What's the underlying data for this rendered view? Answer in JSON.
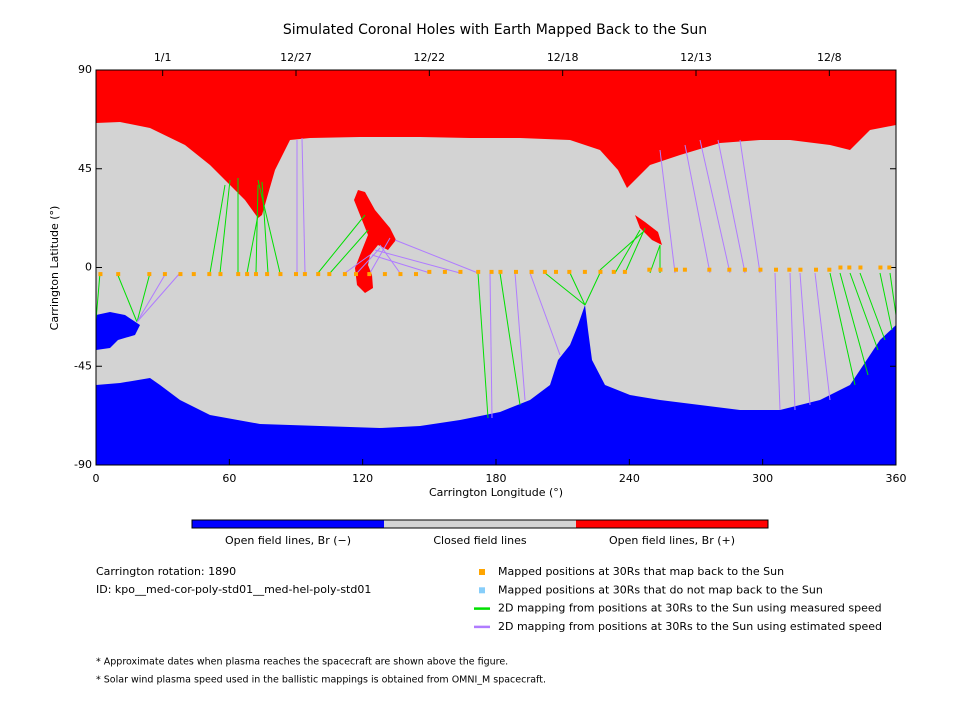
{
  "chart_data": {
    "type": "scatter",
    "title": "Simulated Coronal Holes with Earth Mapped Back to the Sun",
    "x_label": "Carrington Longitude (°)",
    "y_label": "Carrington Latitude (°)",
    "xlim": [
      0,
      360
    ],
    "ylim": [
      -90,
      90
    ],
    "xticks": [
      0,
      60,
      120,
      180,
      240,
      300,
      360
    ],
    "yticks": [
      90,
      45,
      0,
      -45,
      -90
    ],
    "top_ticks": [
      {
        "value": 30,
        "label": "1/1"
      },
      {
        "value": 90,
        "label": "12/27"
      },
      {
        "value": 150,
        "label": "12/22"
      },
      {
        "value": 210,
        "label": "12/18"
      },
      {
        "value": 270,
        "label": "12/13"
      },
      {
        "value": 330,
        "label": "12/8"
      }
    ],
    "points": {
      "color": "#ffa500",
      "x": [
        2,
        10,
        24,
        31,
        38,
        44,
        51,
        56,
        64,
        68,
        72,
        77,
        83,
        90,
        94,
        100,
        105,
        112,
        117,
        123,
        130,
        137,
        144,
        150,
        157,
        164,
        172,
        178,
        182,
        189,
        196,
        202,
        207,
        213,
        220,
        227,
        233,
        238,
        249,
        254,
        261,
        265,
        276,
        285,
        292,
        299,
        306,
        312,
        317,
        324,
        330,
        335,
        339,
        344,
        353,
        357
      ],
      "y": [
        -3,
        -3,
        -3,
        -3,
        -3,
        -3,
        -3,
        -3,
        -3,
        -3,
        -3,
        -3,
        -3,
        -3,
        -3,
        -3,
        -3,
        -3,
        -3,
        -3,
        -3,
        -3,
        -3,
        -2,
        -2,
        -2,
        -2,
        -2,
        -2,
        -2,
        -2,
        -2,
        -2,
        -2,
        -2,
        -2,
        -2,
        -2,
        -1,
        -1,
        -1,
        -1,
        -1,
        -1,
        -1,
        -1,
        -1,
        -1,
        -1,
        -1,
        -1,
        0,
        0,
        0,
        0,
        0
      ]
    },
    "colorbar": [
      {
        "label": "Open field lines, Br (−)",
        "color": "#0000ff"
      },
      {
        "label": "Closed field lines",
        "color": "#d3d3d3"
      },
      {
        "label": "Open field lines, Br (+)",
        "color": "#ff0000"
      }
    ],
    "legend": [
      {
        "label": "Mapped positions at 30Rs that map back to the Sun",
        "color": "#ffa500"
      },
      {
        "label": "Mapped positions at 30Rs that do not map back to the Sun",
        "color": "#87cefa"
      },
      {
        "label": "2D mapping from positions at 30Rs to the Sun using measured speed",
        "color": "#00e000"
      },
      {
        "label": "2D mapping from positions at 30Rs to the Sun using estimated speed",
        "color": "#b07cff"
      }
    ],
    "info": [
      "Carrington rotation: 1890",
      "ID: kpo__med-cor-poly-std01__med-hel-poly-std01"
    ],
    "notes": [
      "* Approximate dates when plasma reaches the spacecraft are shown above the figure.",
      "* Solar wind plasma speed used in the ballistic mappings is obtained from OMNI_M spacecraft."
    ]
  }
}
